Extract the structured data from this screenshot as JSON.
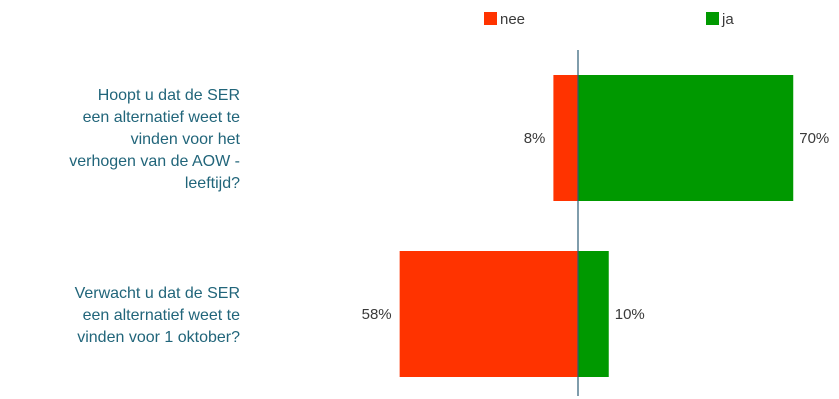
{
  "chart_data": {
    "type": "bar",
    "orientation": "horizontal-diverging",
    "categories": [
      [
        "Hoopt u dat de SER",
        "een alternatief weet te",
        "vinden voor het",
        "verhogen van de AOW -",
        "leeftijd?"
      ],
      [
        "Verwacht u dat de SER",
        "een alternatief weet te",
        "vinden voor 1 oktober?"
      ]
    ],
    "series": [
      {
        "name": "nee",
        "values": [
          8,
          58
        ],
        "labels": [
          "8%",
          "58%"
        ],
        "color": "#ff3300"
      },
      {
        "name": "ja",
        "values": [
          70,
          10
        ],
        "labels": [
          "70%",
          "10%"
        ],
        "color": "#009900"
      }
    ],
    "unit": "%",
    "legend_position": "top",
    "grid": false,
    "axis_line_color": "#2b5c74"
  }
}
